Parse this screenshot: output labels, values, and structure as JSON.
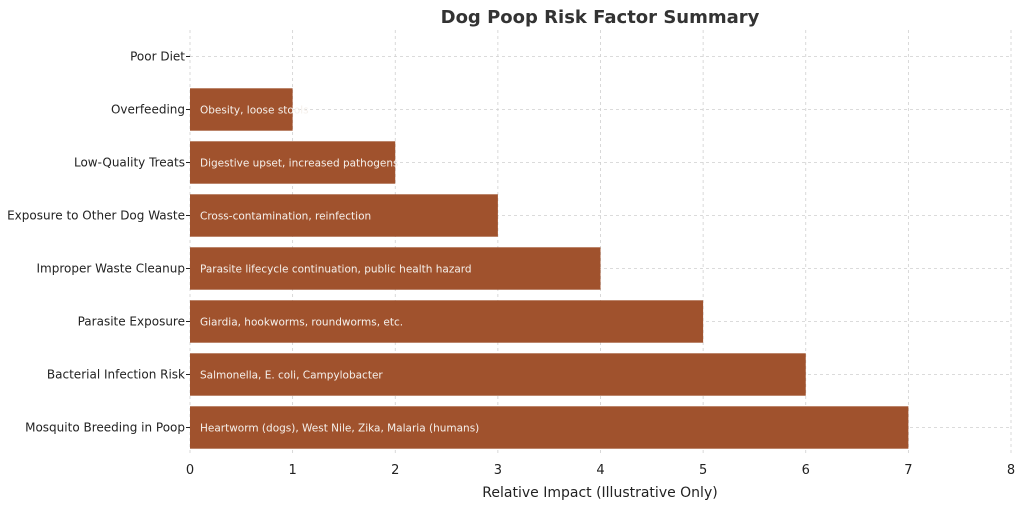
{
  "chart_data": {
    "type": "bar",
    "orientation": "horizontal",
    "title": "Dog Poop Risk Factor Summary",
    "xlabel": "Relative Impact (Illustrative Only)",
    "ylabel": "",
    "xlim": [
      0,
      8
    ],
    "xticks": [
      "0",
      "1",
      "2",
      "3",
      "4",
      "5",
      "6",
      "7",
      "8"
    ],
    "grid": true,
    "bar_color": "#a0522d",
    "categories": [
      "Poor Diet",
      "Overfeeding",
      "Low-Quality Treats",
      "Exposure to Other Dog Waste",
      "Improper Waste Cleanup",
      "Parasite Exposure",
      "Bacterial Infection Risk",
      "Mosquito Breeding in Poop"
    ],
    "values": [
      0,
      1,
      2,
      3,
      4,
      5,
      6,
      7
    ],
    "annotations": [
      "",
      "Obesity, loose stools",
      "Digestive upset, increased pathogens",
      "Cross-contamination, reinfection",
      "Parasite lifecycle continuation, public health hazard",
      "Giardia, hookworms, roundworms, etc.",
      "Salmonella, E. coli, Campylobacter",
      "Heartworm (dogs), West Nile, Zika, Malaria (humans)"
    ]
  }
}
